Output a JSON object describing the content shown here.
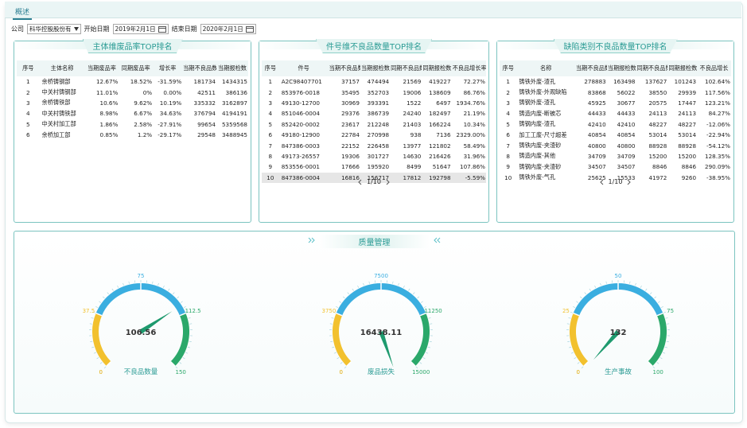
{
  "tabs": [
    "概述"
  ],
  "filters": {
    "company_label": "公司",
    "company": "科华控股股份有",
    "start_label": "开始日期",
    "start": "2019年2月1日",
    "end_label": "结束日期",
    "end": "2020年2月1日"
  },
  "panels": [
    {
      "title": "主体维废品率TOP排名",
      "headers": [
        "序号",
        "主体名称",
        "当期废品率",
        "同期废品率",
        "增长率",
        "当期不良品数",
        "当期报检数"
      ],
      "rows": [
        [
          "1",
          "余桥铸钢部",
          "12.67%",
          "18.52%",
          "-31.59%",
          "181734",
          "1434315"
        ],
        [
          "2",
          "中关村铸钢部",
          "11.01%",
          "0%",
          "0.00%",
          "42511",
          "386136"
        ],
        [
          "3",
          "余桥铸铁部",
          "10.6%",
          "9.62%",
          "10.19%",
          "335332",
          "3162897"
        ],
        [
          "4",
          "中关村铸铁部",
          "8.98%",
          "6.67%",
          "34.63%",
          "376794",
          "4194191"
        ],
        [
          "5",
          "中关村加工部",
          "1.86%",
          "2.58%",
          "-27.91%",
          "99654",
          "5359568"
        ],
        [
          "6",
          "余桥加工部",
          "0.85%",
          "1.2%",
          "-29.17%",
          "29548",
          "3488945"
        ]
      ]
    },
    {
      "title": "件号维不良品数量TOP排名",
      "headers": [
        "序号",
        "件号",
        "当期不良品数",
        "当期报检数",
        "同期不良品数",
        "同期报检数",
        "不良品增长率"
      ],
      "rows": [
        [
          "1",
          "A2C98407701",
          "37157",
          "474494",
          "21569",
          "419227",
          "72.27%"
        ],
        [
          "2",
          "853976-0018",
          "35495",
          "352703",
          "19006",
          "138609",
          "86.76%"
        ],
        [
          "3",
          "49130-12700",
          "30969",
          "393391",
          "1522",
          "6497",
          "1934.76%"
        ],
        [
          "4",
          "851046-0004",
          "29376",
          "386739",
          "24240",
          "182497",
          "21.19%"
        ],
        [
          "5",
          "852420-0002",
          "23617",
          "212248",
          "21403",
          "166224",
          "10.34%"
        ],
        [
          "6",
          "49180-12900",
          "22784",
          "270998",
          "938",
          "7136",
          "2329.00%"
        ],
        [
          "7",
          "847386-0003",
          "22152",
          "226458",
          "13977",
          "121802",
          "58.49%"
        ],
        [
          "8",
          "49173-26557",
          "19306",
          "301727",
          "14630",
          "216426",
          "31.96%"
        ],
        [
          "9",
          "853556-0001",
          "17666",
          "195920",
          "8499",
          "51647",
          "107.86%"
        ],
        [
          "10",
          "847386-0004",
          "16816",
          "156717",
          "17812",
          "192798",
          "-5.59%"
        ]
      ],
      "pager": "1/10"
    },
    {
      "title": "缺陷类别不良品数量TOP排名",
      "headers": [
        "序号",
        "名称",
        "当期不良品数",
        "当期报检数",
        "同期不良品数",
        "同期报检数",
        "不良品增长"
      ],
      "rows": [
        [
          "1",
          "铸铁外废-渣孔",
          "278883",
          "163498",
          "137627",
          "101243",
          "102.64%"
        ],
        [
          "2",
          "铸铁外废-外观缺陷",
          "83868",
          "56022",
          "38550",
          "29939",
          "117.56%"
        ],
        [
          "3",
          "铸钢外废-渣孔",
          "45925",
          "30677",
          "20575",
          "17447",
          "123.21%"
        ],
        [
          "4",
          "铸造内废-断被芯",
          "44433",
          "44433",
          "24113",
          "24113",
          "84.27%"
        ],
        [
          "5",
          "铸钢内废-渣孔",
          "42410",
          "42410",
          "48227",
          "48227",
          "-12.06%"
        ],
        [
          "6",
          "加工工废-尺寸超差",
          "40854",
          "40854",
          "53014",
          "53014",
          "-22.94%"
        ],
        [
          "7",
          "铸铁内废-夹渣砂",
          "40800",
          "40800",
          "88928",
          "88928",
          "-54.12%"
        ],
        [
          "8",
          "铸造内废-其他",
          "34709",
          "34709",
          "15200",
          "15200",
          "128.35%"
        ],
        [
          "9",
          "铸钢内废-夹渣砂",
          "34507",
          "34507",
          "8846",
          "8846",
          "290.09%"
        ],
        [
          "10",
          "铸铁外废-气孔",
          "25625",
          "15533",
          "41972",
          "9260",
          "-38.95%"
        ]
      ],
      "pager": "1/10"
    }
  ],
  "quality": {
    "title": "质量管理",
    "gauges": [
      {
        "label": "不良品数量",
        "value": 106.56,
        "range": [
          0,
          150
        ],
        "ticks": [
          0,
          37.5,
          75,
          112.5,
          150
        ]
      },
      {
        "label": "废品损失",
        "value": 16438.11,
        "range": [
          0,
          15000
        ],
        "ticks": [
          0,
          3750,
          7500,
          11250,
          15000
        ]
      },
      {
        "label": "生产事故",
        "value": 132,
        "range": [
          0,
          100
        ],
        "ticks": [
          0,
          25,
          50,
          75,
          100
        ]
      }
    ]
  }
}
